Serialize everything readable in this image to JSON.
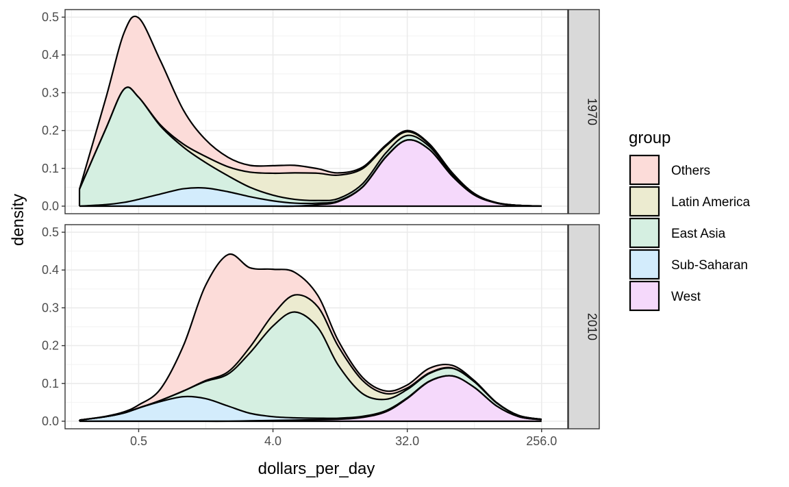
{
  "chart_data": {
    "type": "area",
    "stacked": true,
    "xlabel": "dollars_per_day",
    "ylabel": "density",
    "x_scale": "log2",
    "x_ticks": [
      0.5,
      4,
      32,
      256
    ],
    "x_tick_labels": [
      "0.5",
      "4.0",
      "32.0",
      "256.0"
    ],
    "x_range": [
      0.16,
      384
    ],
    "y_ticks": [
      0,
      0.1,
      0.2,
      0.3,
      0.4,
      0.5
    ],
    "y_tick_labels": [
      "0.0",
      "0.1",
      "0.2",
      "0.3",
      "0.4",
      "0.5"
    ],
    "ylim": [
      -0.02,
      0.52
    ],
    "grid": true,
    "legend": {
      "title": "group",
      "position": "right",
      "entries": [
        "Others",
        "Latin America",
        "East Asia",
        "Sub-Saharan",
        "West"
      ]
    },
    "colors": {
      "Others": "#fcdcd9",
      "Latin America": "#ecebd0",
      "East Asia": "#d5efe1",
      "Sub-Saharan": "#d3ecfc",
      "West": "#f5d9fb"
    },
    "x": [
      0.2,
      0.3,
      0.4,
      0.5,
      0.7,
      1,
      1.4,
      2,
      2.8,
      4,
      5.6,
      8,
      11,
      16,
      23,
      32,
      45,
      64,
      90,
      128,
      180,
      256
    ],
    "panels": [
      {
        "strip": "1970",
        "series": [
          {
            "name": "West",
            "values": [
              0,
              0,
              0,
              0,
              0,
              0,
              0,
              0,
              0,
              0,
              0,
              0.004,
              0.012,
              0.05,
              0.13,
              0.175,
              0.15,
              0.08,
              0.03,
              0.008,
              0.002,
              0
            ]
          },
          {
            "name": "Sub-Saharan",
            "values": [
              0,
              0.004,
              0.01,
              0.018,
              0.032,
              0.046,
              0.048,
              0.038,
              0.025,
              0.014,
              0.008,
              0.004,
              0.002,
              0.001,
              0.001,
              0,
              0,
              0,
              0,
              0,
              0,
              0
            ]
          },
          {
            "name": "East Asia",
            "values": [
              0.045,
              0.2,
              0.3,
              0.27,
              0.18,
              0.11,
              0.068,
              0.042,
              0.025,
              0.015,
              0.01,
              0.007,
              0.006,
              0.008,
              0.01,
              0.012,
              0.008,
              0.005,
              0.002,
              0.001,
              0,
              0
            ]
          },
          {
            "name": "Latin America",
            "values": [
              0,
              0,
              0,
              0,
              0.003,
              0.008,
              0.016,
              0.024,
              0.04,
              0.058,
              0.07,
              0.072,
              0.062,
              0.04,
              0.018,
              0.01,
              0.005,
              0.002,
              0.001,
              0,
              0,
              0
            ]
          },
          {
            "name": "Others",
            "values": [
              0,
              0.08,
              0.15,
              0.21,
              0.17,
              0.09,
              0.045,
              0.025,
              0.018,
              0.02,
              0.02,
              0.012,
              0.006,
              0.004,
              0.003,
              0.003,
              0.002,
              0.002,
              0.001,
              0,
              0,
              0
            ]
          }
        ]
      },
      {
        "strip": "2010",
        "series": [
          {
            "name": "West",
            "values": [
              0,
              0,
              0,
              0,
              0,
              0,
              0,
              0,
              0.001,
              0.002,
              0.003,
              0.004,
              0.005,
              0.01,
              0.025,
              0.06,
              0.105,
              0.12,
              0.09,
              0.04,
              0.012,
              0.004
            ]
          },
          {
            "name": "Sub-Saharan",
            "values": [
              0.003,
              0.012,
              0.022,
              0.035,
              0.052,
              0.065,
              0.06,
              0.04,
              0.02,
              0.01,
              0.006,
              0.004,
              0.003,
              0.003,
              0.003,
              0.002,
              0.001,
              0,
              0,
              0,
              0,
              0
            ]
          },
          {
            "name": "East Asia",
            "values": [
              0,
              0,
              0,
              0,
              0.003,
              0.015,
              0.045,
              0.085,
              0.16,
              0.24,
              0.28,
              0.24,
              0.14,
              0.06,
              0.03,
              0.022,
              0.02,
              0.02,
              0.015,
              0.008,
              0.003,
              0.001
            ]
          },
          {
            "name": "Latin America",
            "values": [
              0,
              0,
              0,
              0,
              0,
              0,
              0.002,
              0.006,
              0.015,
              0.03,
              0.045,
              0.055,
              0.05,
              0.035,
              0.015,
              0.004,
              0.002,
              0.001,
              0,
              0,
              0,
              0
            ]
          },
          {
            "name": "Others",
            "values": [
              0,
              0.001,
              0.003,
              0.008,
              0.03,
              0.12,
              0.25,
              0.31,
              0.21,
              0.12,
              0.06,
              0.03,
              0.015,
              0.008,
              0.007,
              0.008,
              0.012,
              0.007,
              0.003,
              0.001,
              0,
              0
            ]
          }
        ]
      }
    ]
  }
}
